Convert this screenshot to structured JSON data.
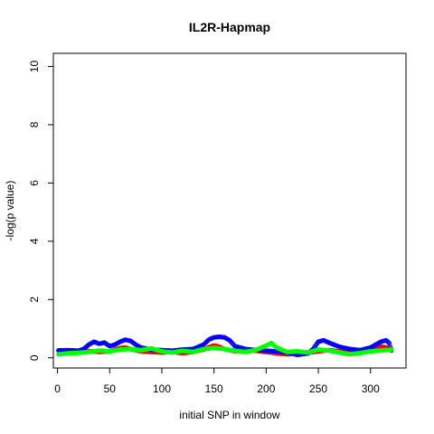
{
  "chart_data": {
    "type": "scatter",
    "title": "IL2R-Hapmap",
    "xlabel": "initial SNP in window",
    "ylabel": "-log(p value)",
    "xlim": [
      -4,
      334
    ],
    "ylim": [
      -0.35,
      10.45
    ],
    "x_ticks": [
      0,
      50,
      100,
      150,
      200,
      250,
      300
    ],
    "y_ticks": [
      0,
      2,
      4,
      6,
      8,
      10
    ],
    "x_tick_labels": [
      "0",
      "50",
      "100",
      "150",
      "200",
      "250",
      "300"
    ],
    "y_tick_labels": [
      "0",
      "2",
      "4",
      "6",
      "8",
      "10"
    ],
    "grid": false,
    "legend": "none",
    "series": [
      {
        "color": "#ff0000",
        "x": [
          1,
          10,
          20,
          30,
          40,
          50,
          55,
          60,
          65,
          70,
          80,
          90,
          100,
          110,
          120,
          130,
          140,
          145,
          150,
          155,
          160,
          170,
          180,
          190,
          200,
          205,
          210,
          220,
          230,
          240,
          250,
          260,
          270,
          280,
          290,
          300,
          305,
          310,
          315,
          320
        ],
        "y": [
          0.25,
          0.24,
          0.24,
          0.23,
          0.2,
          0.22,
          0.28,
          0.33,
          0.35,
          0.3,
          0.22,
          0.2,
          0.18,
          0.2,
          0.16,
          0.2,
          0.28,
          0.36,
          0.42,
          0.38,
          0.3,
          0.22,
          0.25,
          0.24,
          0.2,
          0.18,
          0.15,
          0.12,
          0.14,
          0.18,
          0.22,
          0.26,
          0.22,
          0.18,
          0.22,
          0.28,
          0.34,
          0.38,
          0.36,
          0.3
        ]
      },
      {
        "color": "#0000ff",
        "x": [
          1,
          10,
          20,
          25,
          30,
          35,
          40,
          45,
          50,
          55,
          60,
          65,
          70,
          75,
          80,
          90,
          100,
          110,
          120,
          130,
          140,
          145,
          150,
          155,
          160,
          165,
          170,
          180,
          190,
          200,
          210,
          220,
          230,
          240,
          245,
          250,
          255,
          260,
          270,
          280,
          290,
          300,
          305,
          310,
          315,
          318,
          320
        ],
        "y": [
          0.25,
          0.26,
          0.24,
          0.3,
          0.45,
          0.55,
          0.48,
          0.52,
          0.4,
          0.45,
          0.55,
          0.62,
          0.58,
          0.45,
          0.35,
          0.28,
          0.26,
          0.24,
          0.28,
          0.3,
          0.45,
          0.62,
          0.7,
          0.72,
          0.7,
          0.6,
          0.4,
          0.3,
          0.26,
          0.24,
          0.22,
          0.18,
          0.1,
          0.15,
          0.3,
          0.55,
          0.6,
          0.52,
          0.38,
          0.3,
          0.26,
          0.35,
          0.45,
          0.55,
          0.6,
          0.5,
          0.25
        ]
      },
      {
        "color": "#00ff00",
        "x": [
          1,
          10,
          20,
          30,
          40,
          50,
          60,
          70,
          80,
          90,
          100,
          110,
          120,
          130,
          140,
          150,
          160,
          170,
          180,
          190,
          200,
          205,
          210,
          220,
          230,
          240,
          250,
          260,
          270,
          280,
          290,
          300,
          310,
          320
        ],
        "y": [
          0.12,
          0.15,
          0.17,
          0.2,
          0.25,
          0.22,
          0.28,
          0.3,
          0.26,
          0.32,
          0.22,
          0.18,
          0.24,
          0.2,
          0.3,
          0.34,
          0.3,
          0.24,
          0.2,
          0.26,
          0.42,
          0.5,
          0.35,
          0.2,
          0.22,
          0.18,
          0.28,
          0.25,
          0.18,
          0.12,
          0.16,
          0.22,
          0.25,
          0.28
        ]
      }
    ]
  }
}
